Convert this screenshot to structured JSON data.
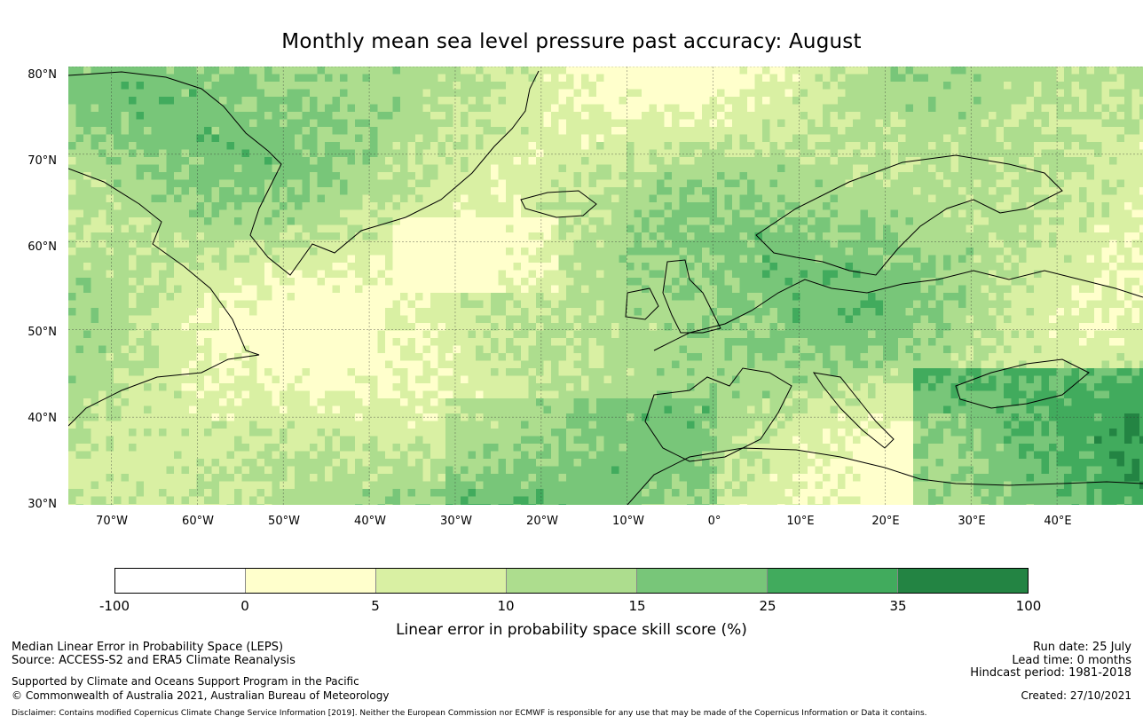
{
  "title": "Monthly mean sea level pressure past accuracy: August",
  "map": {
    "lat_range": [
      30,
      80
    ],
    "lon_range": [
      -75,
      50
    ],
    "lat_labels": [
      "30°N",
      "40°N",
      "50°N",
      "60°N",
      "70°N",
      "80°N"
    ],
    "lon_labels": [
      "70°W",
      "60°W",
      "50°W",
      "40°W",
      "30°W",
      "20°W",
      "10°W",
      "0°",
      "10°E",
      "20°E",
      "30°E",
      "40°E"
    ],
    "gridlines": true,
    "coastlines": true
  },
  "colorbar": {
    "ticks": [
      "-100",
      "0",
      "5",
      "10",
      "15",
      "25",
      "35",
      "100"
    ],
    "colors": [
      "#ffffff",
      "#ffffcc",
      "#d9f0a3",
      "#addd8e",
      "#78c679",
      "#41ab5d",
      "#238443"
    ],
    "label": "Linear error in probability space skill score (%)"
  },
  "footer": {
    "method": "Median Linear Error in Probability Space (LEPS)",
    "source": "Source: ACCESS-S2 and ERA5 Climate Reanalysis",
    "support": "Supported by Climate and Oceans Support Program in the Pacific",
    "copyright": "© Commonwealth of Australia 2021, Australian Bureau of Meteorology",
    "run_date": "Run date: 25 July",
    "lead_time": "Lead time: 0 months",
    "hindcast": "Hindcast period: 1981-2018",
    "created": "Created: 27/10/2021",
    "disclaimer": "Disclaimer: Contains modified Copernicus Climate Change Service Information [2019]. Neither the European Commission nor ECMWF is responsible for any use that may be made of the Copernicus Information or Data it contains."
  }
}
